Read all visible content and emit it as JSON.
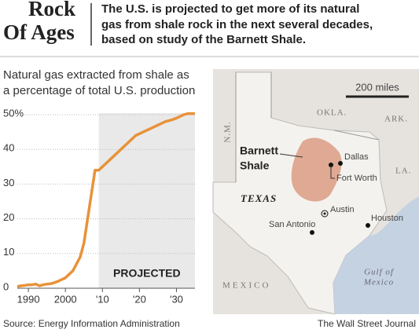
{
  "header": {
    "title": [
      "Rock",
      "Of Ages"
    ],
    "subtitle": [
      "The U.S. is projected to get more of its natural",
      "gas from shale rock in the next several decades,",
      "based on study of the Barnett Shale."
    ]
  },
  "chart_data": {
    "type": "line",
    "title": [
      "Natural gas extracted from shale as",
      "a percentage of total U.S. production"
    ],
    "x": [
      1987,
      1988,
      1989,
      1990,
      1991,
      1992,
      1993,
      1994,
      1995,
      1996,
      1997,
      1998,
      1999,
      2000,
      2001,
      2002,
      2003,
      2004,
      2005,
      2006,
      2007,
      2008,
      2009,
      2010,
      2011,
      2012,
      2013,
      2014,
      2015,
      2016,
      2017,
      2018,
      2019,
      2020,
      2021,
      2022,
      2023,
      2024,
      2025,
      2026,
      2027,
      2028,
      2029,
      2030,
      2031,
      2032,
      2033,
      2034,
      2035
    ],
    "values": [
      0.5,
      0.7,
      0.8,
      1,
      1,
      1.2,
      0.7,
      1,
      1.2,
      1.3,
      1.6,
      2,
      2.5,
      3,
      4,
      5,
      7,
      9,
      13,
      20,
      27,
      34,
      34,
      35,
      36,
      37,
      38,
      39,
      40,
      41,
      42,
      43,
      44,
      44.5,
      45,
      45.5,
      46,
      46.5,
      47,
      47.5,
      48,
      48.3,
      48.6,
      49,
      49.5,
      50,
      50.3,
      50.3,
      50.3
    ],
    "color": "#e8923a",
    "xlim": [
      1987,
      2035
    ],
    "xticks": [
      1990,
      2000,
      {
        "value": 2010,
        "label": "'10"
      },
      {
        "value": 2020,
        "label": "'20"
      },
      {
        "value": 2030,
        "label": "'30"
      }
    ],
    "ylim": [
      0,
      50
    ],
    "yticks": [
      0,
      10,
      20,
      30,
      40,
      {
        "value": 50,
        "label": "50%"
      }
    ],
    "grid": true,
    "projected_from": 2009,
    "annotation": "PROJECTED"
  },
  "map": {
    "scale": "200 miles",
    "okla": "OKLA.",
    "ark": "ARK.",
    "nm": "N.M.",
    "la": "LA.",
    "shale": [
      "Barnett",
      "Shale"
    ],
    "dallas": "Dallas",
    "fort_worth": "Fort Worth",
    "texas": "TEXAS",
    "austin": "Austin",
    "houston": "Houston",
    "san_antonio": "San Antonio",
    "mexico": "MEXICO",
    "gulf": [
      "Gulf of",
      "Mexico"
    ]
  },
  "footer": {
    "source": "Source: Energy Information Administration",
    "credit": "The Wall Street Journal"
  }
}
